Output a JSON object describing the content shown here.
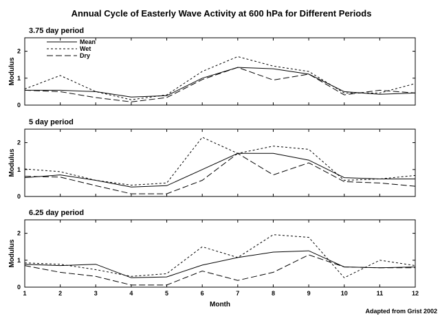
{
  "chart_data": {
    "type": "line",
    "title": "Annual Cycle of Easterly Wave Activity at 600 hPa for Different Periods",
    "credit": "Adapted from Grist 2002",
    "xlabel": "Month",
    "x": [
      1,
      2,
      3,
      4,
      5,
      6,
      7,
      8,
      9,
      10,
      11,
      12
    ],
    "xlim": [
      1,
      12
    ],
    "legend": {
      "placement": "top-left",
      "entries": [
        "Mean",
        "Wet",
        "Dry"
      ]
    },
    "colors": {
      "line": "#000000",
      "frame": "#000000",
      "background": "#ffffff"
    },
    "panels": [
      {
        "title": "3.75 day period",
        "ylabel": "Modulus",
        "ylim": [
          0,
          2.5
        ],
        "yticks": [
          0,
          1,
          2
        ],
        "series": [
          {
            "name": "Mean",
            "dash": "solid",
            "values": [
              0.55,
              0.55,
              0.5,
              0.3,
              0.35,
              1.0,
              1.4,
              1.35,
              1.15,
              0.5,
              0.4,
              0.45
            ]
          },
          {
            "name": "Wet",
            "dash": "short",
            "values": [
              0.6,
              1.1,
              0.5,
              0.2,
              0.38,
              1.25,
              1.8,
              1.45,
              1.25,
              0.45,
              0.45,
              0.8
            ]
          },
          {
            "name": "Dry",
            "dash": "long",
            "values": [
              0.55,
              0.5,
              0.28,
              0.12,
              0.28,
              0.95,
              1.4,
              0.93,
              1.15,
              0.38,
              0.55,
              0.45
            ]
          }
        ]
      },
      {
        "title": "5 day period",
        "ylabel": "Modulus",
        "ylim": [
          0,
          2.5
        ],
        "yticks": [
          0,
          1,
          2
        ],
        "series": [
          {
            "name": "Mean",
            "dash": "solid",
            "values": [
              0.7,
              0.8,
              0.6,
              0.35,
              0.4,
              1.0,
              1.6,
              1.6,
              1.35,
              0.7,
              0.65,
              0.65
            ]
          },
          {
            "name": "Wet",
            "dash": "short",
            "values": [
              1.02,
              0.92,
              0.6,
              0.42,
              0.5,
              2.2,
              1.6,
              1.87,
              1.75,
              0.6,
              0.65,
              0.78
            ]
          },
          {
            "name": "Dry",
            "dash": "long",
            "values": [
              0.75,
              0.72,
              0.4,
              0.1,
              0.1,
              0.6,
              1.6,
              0.8,
              1.25,
              0.55,
              0.5,
              0.38
            ]
          }
        ]
      },
      {
        "title": "6.25 day period",
        "ylabel": "Modulus",
        "ylim": [
          0,
          2.5
        ],
        "yticks": [
          0,
          1,
          2
        ],
        "series": [
          {
            "name": "Mean",
            "dash": "solid",
            "values": [
              0.85,
              0.8,
              0.85,
              0.35,
              0.38,
              0.82,
              1.1,
              1.3,
              1.35,
              0.75,
              0.72,
              0.75
            ]
          },
          {
            "name": "Wet",
            "dash": "short",
            "values": [
              0.9,
              0.85,
              0.65,
              0.4,
              0.5,
              1.5,
              1.1,
              1.95,
              1.85,
              0.35,
              1.0,
              0.8
            ]
          },
          {
            "name": "Dry",
            "dash": "long",
            "values": [
              0.8,
              0.55,
              0.4,
              0.08,
              0.08,
              0.6,
              0.25,
              0.55,
              1.2,
              0.75,
              0.72,
              0.72
            ]
          }
        ]
      }
    ]
  }
}
